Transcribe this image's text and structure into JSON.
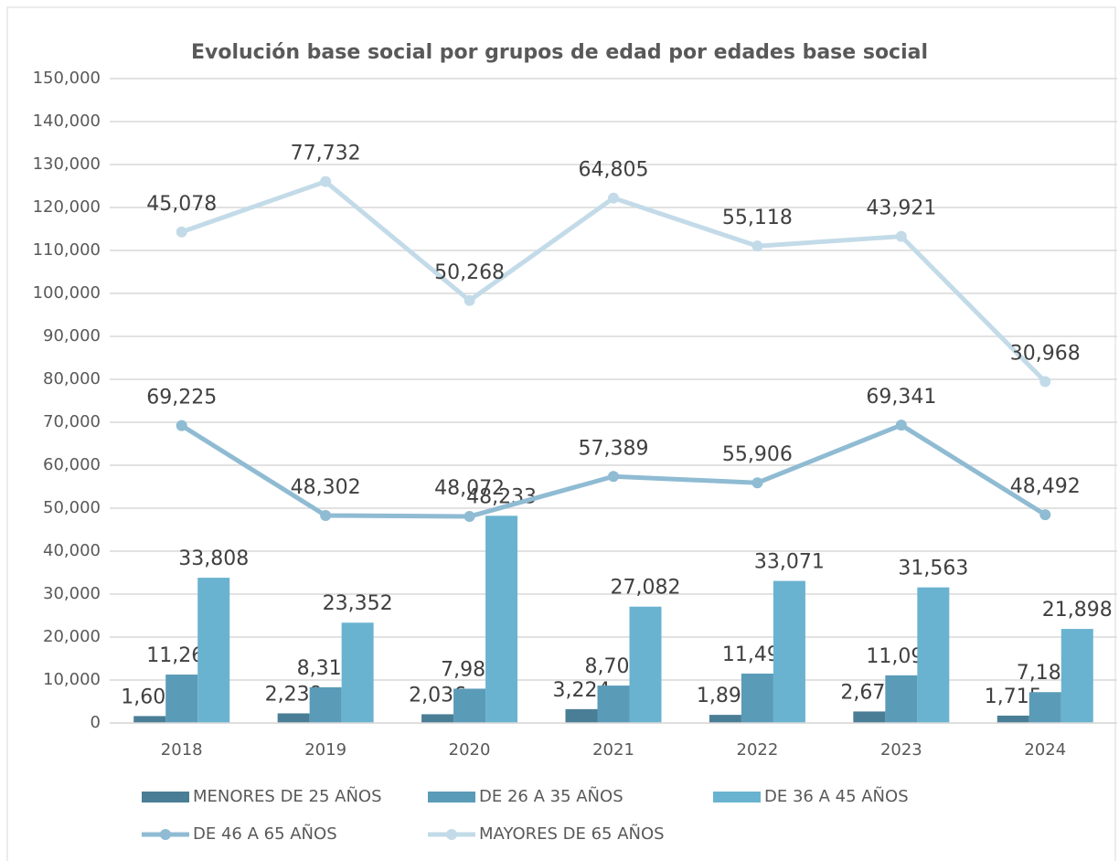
{
  "chart_data": {
    "type": "combo",
    "title": "Evolución base social por grupos de edad por edades base social",
    "categories": [
      "2018",
      "2019",
      "2020",
      "2021",
      "2022",
      "2023",
      "2024"
    ],
    "ylim": [
      0,
      150000
    ],
    "yticks": [
      0,
      {
        "value": 10000,
        "label": "10,000"
      },
      {
        "value": 20000,
        "label": "20,000"
      },
      {
        "value": 30000,
        "label": "30,000"
      },
      {
        "value": 40000,
        "label": "40,000"
      },
      {
        "value": 50000,
        "label": "50,000"
      },
      {
        "value": 60000,
        "label": "60,000"
      },
      {
        "value": 70000,
        "label": "70,000"
      },
      {
        "value": 80000,
        "label": "80,000"
      },
      {
        "value": 90000,
        "label": "90,000"
      },
      {
        "value": 100000,
        "label": "100,000"
      },
      {
        "value": 110000,
        "label": "110,000"
      },
      {
        "value": 120000,
        "label": "120,000"
      },
      {
        "value": 130000,
        "label": "130,000"
      },
      {
        "value": 140000,
        "label": "140,000"
      },
      {
        "value": 150000,
        "label": "150,000"
      }
    ],
    "grid": true,
    "stacked_lines": true,
    "legend": "bottom",
    "series": [
      {
        "name": "MENORES DE 25 AÑOS",
        "type": "bar",
        "color": "#4a7e96",
        "values": [
          1609,
          2239,
          2036,
          3224,
          1890,
          2676,
          1715
        ],
        "value_labels": [
          "1,609",
          "2,239",
          "2,036",
          "3,224",
          "1,890",
          "2,676",
          "1,715"
        ]
      },
      {
        "name": "DE 26 A 35 AÑOS",
        "type": "bar",
        "color": "#5a9bb8",
        "values": [
          11269,
          8317,
          7987,
          8705,
          11496,
          11095,
          7183
        ],
        "value_labels": [
          "11,269",
          "8,317",
          "7,987",
          "8,705",
          "11,496",
          "11,095",
          "7,183"
        ]
      },
      {
        "name": "DE 36 A 45 AÑOS",
        "type": "bar",
        "color": "#6ab3d0",
        "values": [
          33808,
          23352,
          48233,
          27082,
          33071,
          31563,
          21898
        ],
        "value_labels": [
          "33,808",
          "23,352",
          "48,233",
          "27,082",
          "33,071",
          "31,563",
          "21,898"
        ]
      },
      {
        "name": "DE 46 A 65 AÑOS",
        "type": "line",
        "color": "#8fbbd3",
        "values": [
          69225,
          48302,
          48072,
          57389,
          55906,
          69341,
          48492
        ],
        "value_labels": [
          "69,225",
          "48,302",
          "48,072",
          "57,389",
          "55,906",
          "69,341",
          "48,492"
        ]
      },
      {
        "name": "MAYORES DE 65 AÑOS",
        "type": "line",
        "color": "#c3dbe8",
        "values": [
          45078,
          77732,
          50268,
          64805,
          55118,
          43921,
          30968
        ],
        "value_labels": [
          "45,078",
          "77,732",
          "50,268",
          "64,805",
          "55,118",
          "43,921",
          "30,968"
        ]
      }
    ]
  }
}
